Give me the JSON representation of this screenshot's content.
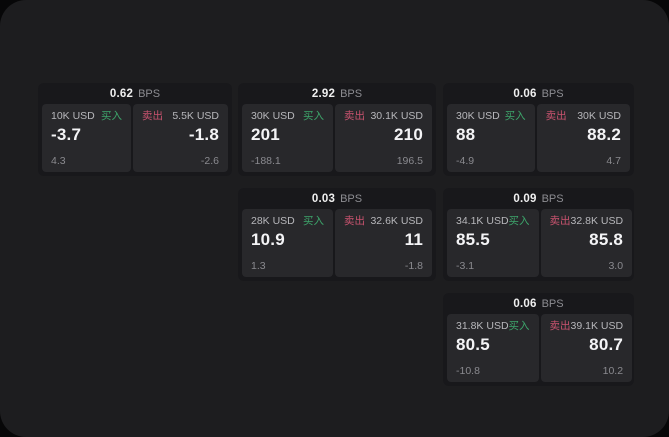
{
  "labels": {
    "bps": "BPS",
    "buy": "买入",
    "sell": "卖出"
  },
  "colors": {
    "panel_bg": "#1d1d1f",
    "card_bg": "#18181b",
    "subpanel_bg": "#28282b",
    "buy_green": "#3da56b",
    "sell_red": "#c9536f"
  },
  "cards": [
    {
      "bps": "0.62",
      "buy": {
        "size": "10K USD",
        "value": "-3.7",
        "delta": "4.3"
      },
      "sell": {
        "size": "5.5K USD",
        "value": "-1.8",
        "delta": "-2.6"
      }
    },
    {
      "bps": "2.92",
      "buy": {
        "size": "30K USD",
        "value": "201",
        "delta": "-188.1"
      },
      "sell": {
        "size": "30.1K USD",
        "value": "210",
        "delta": "196.5"
      }
    },
    {
      "bps": "0.06",
      "buy": {
        "size": "30K USD",
        "value": "88",
        "delta": "-4.9"
      },
      "sell": {
        "size": "30K USD",
        "value": "88.2",
        "delta": "4.7"
      }
    },
    {
      "bps": "0.03",
      "buy": {
        "size": "28K USD",
        "value": "10.9",
        "delta": "1.3"
      },
      "sell": {
        "size": "32.6K USD",
        "value": "11",
        "delta": "-1.8"
      }
    },
    {
      "bps": "0.09",
      "buy": {
        "size": "34.1K USD",
        "value": "85.5",
        "delta": "-3.1"
      },
      "sell": {
        "size": "32.8K USD",
        "value": "85.8",
        "delta": "3.0"
      }
    },
    {
      "bps": "0.06",
      "buy": {
        "size": "31.8K USD",
        "value": "80.5",
        "delta": "-10.8"
      },
      "sell": {
        "size": "39.1K USD",
        "value": "80.7",
        "delta": "10.2"
      }
    }
  ]
}
